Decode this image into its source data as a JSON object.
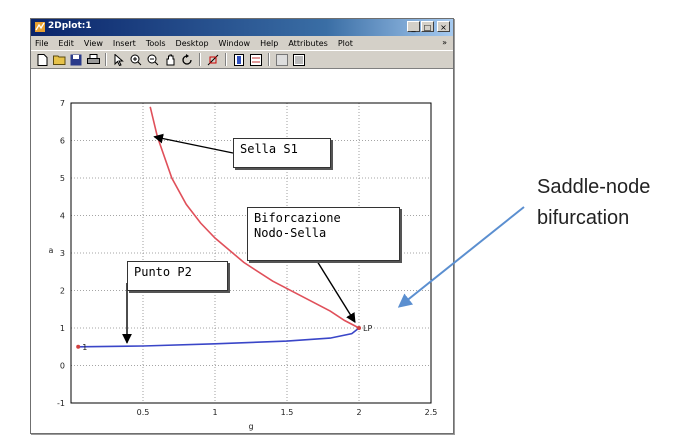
{
  "window": {
    "title": "2Dplot:1",
    "minimize_label": "_",
    "maximize_label": "□",
    "close_label": "×"
  },
  "menu": {
    "items": [
      "File",
      "Edit",
      "View",
      "Insert",
      "Tools",
      "Desktop",
      "Window",
      "Help",
      "Attributes",
      "Plot"
    ],
    "overflow_glyph": "»"
  },
  "toolbar": {
    "buttons": [
      "new-file-icon",
      "open-folder-icon",
      "save-icon",
      "print-icon",
      "pointer-icon",
      "zoom-in-icon",
      "zoom-out-icon",
      "pan-icon",
      "rotate-icon",
      "data-cursor-icon",
      "colorbar-icon",
      "legend-icon",
      "grid-icon",
      "plot-tools-icon"
    ]
  },
  "chart_data": {
    "type": "line",
    "xlabel": "g",
    "ylabel": "a",
    "xlim": [
      0,
      2.5
    ],
    "ylim": [
      -1,
      7
    ],
    "xticks": [
      "0.5",
      "1",
      "1.5",
      "2",
      "2.5"
    ],
    "yticks": [
      "-1",
      "0",
      "1",
      "2",
      "3",
      "4",
      "5",
      "6",
      "7"
    ],
    "grid": true,
    "series": [
      {
        "color": "#e0505a",
        "x": [
          0.55,
          0.6,
          0.7,
          0.8,
          0.9,
          1.0,
          1.2,
          1.4,
          1.6,
          1.8,
          1.9,
          2.0
        ],
        "y": [
          6.9,
          6.1,
          5.0,
          4.3,
          3.8,
          3.4,
          2.75,
          2.25,
          1.85,
          1.45,
          1.2,
          1.0
        ]
      },
      {
        "color": "#3a46c8",
        "x": [
          0.05,
          0.5,
          1.0,
          1.5,
          1.8,
          1.95,
          2.0
        ],
        "y": [
          0.5,
          0.52,
          0.58,
          0.65,
          0.73,
          0.85,
          1.0
        ]
      }
    ],
    "markers": [
      {
        "label": "LP",
        "x": 2.0,
        "y": 1.0
      },
      {
        "label": "1",
        "x": 0.05,
        "y": 0.5
      }
    ],
    "annotations": [
      {
        "text": "Sella S1",
        "target_x": 0.55,
        "target_y": 6.1
      },
      {
        "text": "Biforcazione\nNodo-Sella",
        "target_x": 2.0,
        "target_y": 1.05
      },
      {
        "text": "Punto P2",
        "target_x": 0.47,
        "target_y": 0.55
      }
    ]
  },
  "callout": {
    "text": "Saddle-node\nbifurcation",
    "arrow_color": "#5b8fd0"
  }
}
